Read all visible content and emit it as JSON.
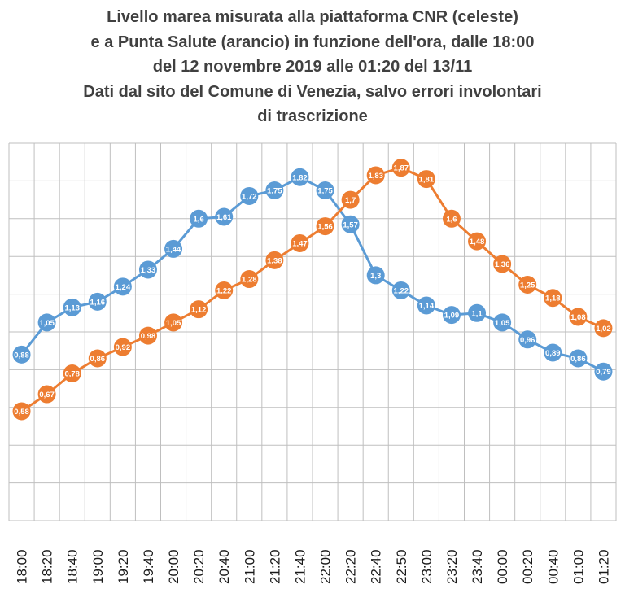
{
  "chart_data": {
    "type": "line",
    "title_lines": [
      "Livello marea misurata alla piattaforma CNR (celeste)",
      "e a Punta Salute (arancio) in funzione dell'ora, dalle 18:00",
      "del 12 novembre 2019  alle 01:20 del 13/11",
      "Dati dal sito del Comune di Venezia, salvo errori involontari",
      "di trascrizione"
    ],
    "categories": [
      "18:00",
      "18:20",
      "18:40",
      "19:00",
      "19:20",
      "19:40",
      "20:00",
      "20:20",
      "20:40",
      "21:00",
      "21:20",
      "21:40",
      "22:00",
      "22:20",
      "22:40",
      "22:50",
      "23:00",
      "23:20",
      "23:40",
      "00:00",
      "00:20",
      "00:40",
      "01:00",
      "01:20"
    ],
    "series": [
      {
        "color": "#5b9bd5",
        "values": [
          0.88,
          1.05,
          1.13,
          1.16,
          1.24,
          1.33,
          1.44,
          1.6,
          1.61,
          1.72,
          1.75,
          1.82,
          1.75,
          1.57,
          1.3,
          1.22,
          1.14,
          1.09,
          1.1,
          1.05,
          0.96,
          0.89,
          0.86,
          0.79
        ],
        "labels": [
          "0,88",
          "1,05",
          "1,13",
          "1,16",
          "1,24",
          "1,33",
          "1,44",
          "1,6",
          "1,61",
          "1,72",
          "1,75",
          "1,82",
          "1,75",
          "1,57",
          "1,3",
          "1,22",
          "1,14",
          "1,09",
          "1,1",
          "1,05",
          "0,96",
          "0,89",
          "0,86",
          "0,79"
        ]
      },
      {
        "color": "#ed7d31",
        "values": [
          0.58,
          0.67,
          0.78,
          0.86,
          0.92,
          0.98,
          1.05,
          1.12,
          1.22,
          1.28,
          1.38,
          1.47,
          1.56,
          1.7,
          1.83,
          1.87,
          1.81,
          1.6,
          1.48,
          1.36,
          1.25,
          1.18,
          1.08,
          1.02
        ],
        "labels": [
          "0,58",
          "0,67",
          "0,78",
          "0,86",
          "0,92",
          "0,98",
          "1,05",
          "1,12",
          "1,22",
          "1,28",
          "1,38",
          "1,47",
          "1,56",
          "1,7",
          "1,83",
          "1,87",
          "1,81",
          "1,6",
          "1,48",
          "1,36",
          "1,25",
          "1,18",
          "1,08",
          "1,02"
        ]
      }
    ],
    "ylim": [
      0,
      2.0
    ],
    "grid": true,
    "legend": "none"
  }
}
